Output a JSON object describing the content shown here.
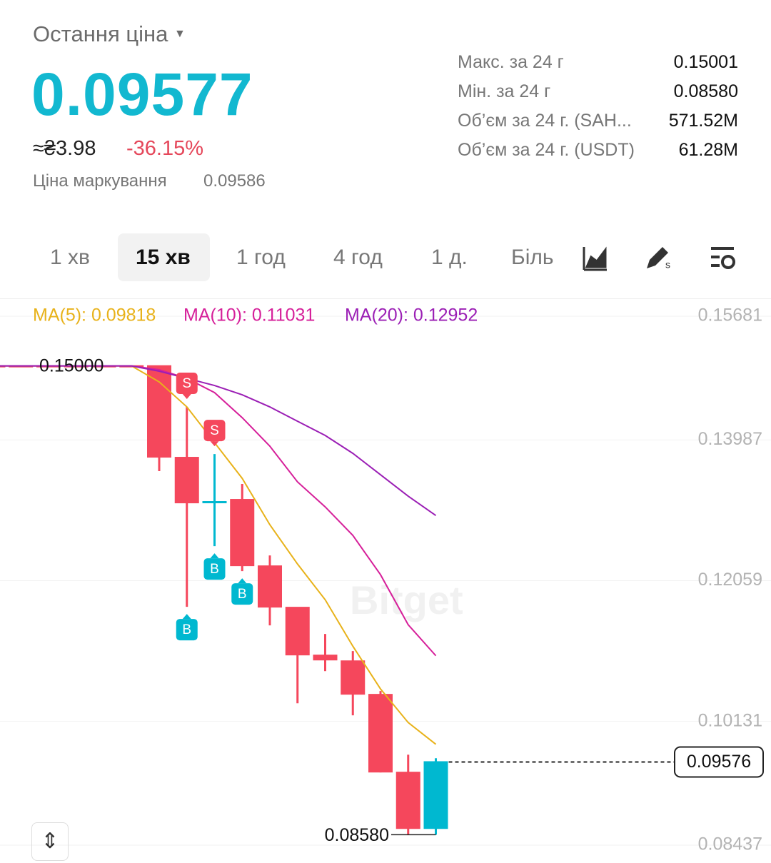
{
  "header": {
    "title": "Остання ціна",
    "last_price": "0.09577",
    "fiat_price": "≈₴3.98",
    "change": "-36.15%",
    "mark_label": "Ціна маркування",
    "mark_price": "0.09586"
  },
  "stats": [
    {
      "label": "Макс. за 24 г",
      "value": "0.15001"
    },
    {
      "label": "Мін. за 24 г",
      "value": "0.08580"
    },
    {
      "label": "Об’єм за 24 г. (SAH...",
      "value": "571.52M"
    },
    {
      "label": "Об’єм за 24 г. (USDT)",
      "value": "61.28M"
    }
  ],
  "tabs": {
    "items": [
      "1 хв",
      "15 хв",
      "1 год",
      "4 год",
      "1 д.",
      "Біль"
    ],
    "selected": 1
  },
  "chart_data": {
    "type": "candlestick",
    "watermark": "Bitget",
    "open": [
      0.15,
      0.15,
      0.15,
      0.15,
      0.15,
      0.15,
      0.15,
      0.13745,
      0.13129,
      0.13168,
      0.12258,
      0.11691,
      0.11036,
      0.10957,
      0.10498,
      0.09432,
      0.08659
    ],
    "high": [
      0.15,
      0.15,
      0.15,
      0.15,
      0.15,
      0.15,
      0.15,
      0.14439,
      0.13793,
      0.13383,
      0.12405,
      0.11691,
      0.11329,
      0.11094,
      0.10547,
      0.09676,
      0.09627
    ],
    "low": [
      0.15,
      0.15,
      0.15,
      0.15,
      0.15,
      0.15,
      0.13559,
      0.11701,
      0.12532,
      0.1219,
      0.11446,
      0.1038,
      0.1082,
      0.10214,
      0.09432,
      0.0858,
      0.0858
    ],
    "close": [
      0.15,
      0.15,
      0.15,
      0.15,
      0.15,
      0.15,
      0.13745,
      0.13119,
      0.13139,
      0.12258,
      0.11691,
      0.11036,
      0.10967,
      0.10498,
      0.09432,
      0.08659,
      0.09576
    ],
    "up_color": "#00b8d0",
    "down_color": "#f5475c",
    "series": [
      {
        "name": "MA(5): 0.09818",
        "color": "#e8b21a",
        "values": [
          0.15,
          0.15,
          0.15,
          0.15,
          0.15,
          0.15,
          0.14781,
          0.14439,
          0.1395,
          0.13461,
          0.12825,
          0.12287,
          0.11798,
          0.11162,
          0.10576,
          0.10116,
          0.09818
        ]
      },
      {
        "name": "MA(10): 0.11031",
        "color": "#d6209a",
        "values": [
          0.15,
          0.15,
          0.15,
          0.15,
          0.15,
          0.15,
          0.14948,
          0.1483,
          0.14635,
          0.14292,
          0.13901,
          0.13412,
          0.1307,
          0.12679,
          0.12141,
          0.11456,
          0.11031
        ]
      },
      {
        "name": "MA(20): 0.12952",
        "color": "#9b1fb5",
        "values": [
          0.15,
          0.15,
          0.15,
          0.15,
          0.15,
          0.15,
          0.14928,
          0.1483,
          0.14732,
          0.14605,
          0.14439,
          0.14243,
          0.14048,
          0.13803,
          0.1351,
          0.13217,
          0.12952
        ]
      }
    ],
    "trades": [
      {
        "label": "S",
        "candle": 7
      },
      {
        "label": "S",
        "candle": 8
      },
      {
        "label": "B",
        "candle": 7
      },
      {
        "label": "B",
        "candle": 8
      },
      {
        "label": "B",
        "candle": 9
      }
    ],
    "annotations": [
      {
        "value": 0.15,
        "label": "0.15000"
      },
      {
        "value": 0.0858,
        "label": "0.08580"
      }
    ],
    "ylim": [
      0.08192,
      0.15906
    ],
    "yticks": [
      0.15681,
      0.13987,
      0.12059,
      0.10131,
      0.08437
    ]
  }
}
